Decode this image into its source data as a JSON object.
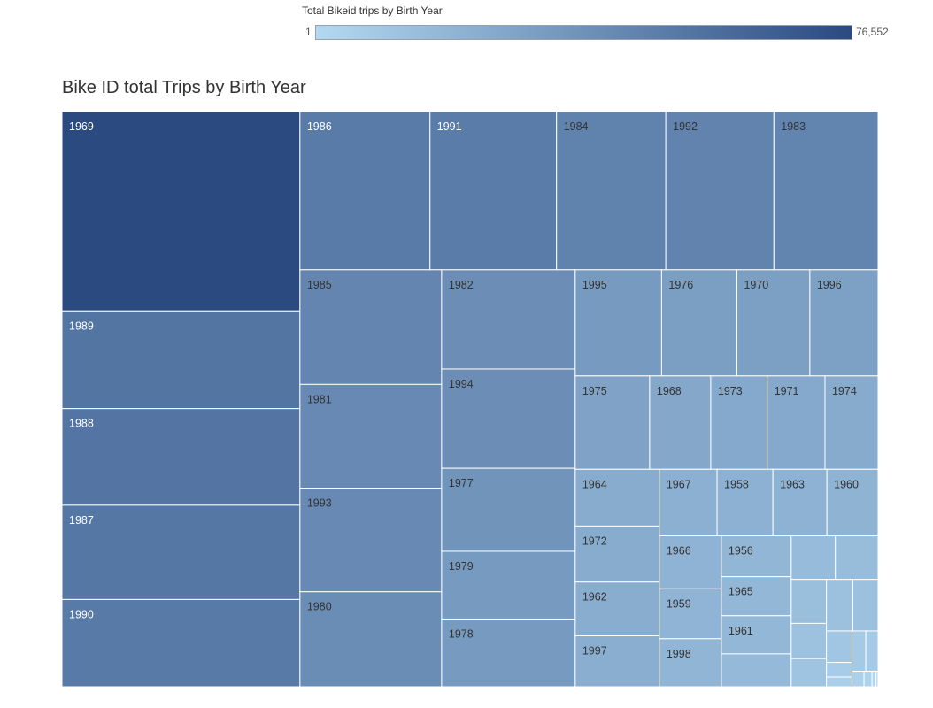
{
  "legend": {
    "title": "Total Bikeid trips by Birth Year",
    "min_label": "1",
    "max_label": "76,552",
    "color_low": "#b3d9f2",
    "color_high": "#2a4a80"
  },
  "chart_data": {
    "type": "treemap",
    "title": "Bike ID total Trips by Birth Year",
    "color_measure": "Total Bikeid trips",
    "color_range": [
      1,
      76552
    ],
    "layout": [
      {
        "len": 276,
        "cells": [
          {
            "label": "1969",
            "value": 76552
          },
          {
            "label": "1989",
            "value": 37500
          },
          {
            "label": "1988",
            "value": 37100
          },
          {
            "label": "1987",
            "value": 36200
          },
          {
            "label": "1990",
            "value": 33500
          }
        ]
      },
      {
        "len": 645,
        "cells": [
          {
            "rowlen": 183,
            "cells": [
              {
                "label": "1986",
                "value": 33200
              },
              {
                "label": "1991",
                "value": 32300
              },
              {
                "label": "1984",
                "value": 27900
              },
              {
                "label": "1992",
                "value": 27600
              },
              {
                "label": "1983",
                "value": 26600
              }
            ]
          },
          {
            "rowlen": 467,
            "cells": [
              {
                "len": 164,
                "cells": [
                  {
                    "label": "1985",
                    "value": 26200
                  },
                  {
                    "label": "1981",
                    "value": 23700
                  },
                  {
                    "label": "1993",
                    "value": 23700
                  },
                  {
                    "label": "1980",
                    "value": 21700
                  }
                ]
              },
              {
                "len": 155,
                "cells": [
                  {
                    "label": "1982",
                    "value": 21400
                  },
                  {
                    "label": "1994",
                    "value": 21400
                  },
                  {
                    "label": "1977",
                    "value": 17900
                  },
                  {
                    "label": "1979",
                    "value": 14600
                  },
                  {
                    "label": "1978",
                    "value": 14600
                  }
                ]
              },
              {
                "len": 326,
                "cells": [
                  {
                    "rowlen": 126,
                    "cells": [
                      {
                        "label": "1995",
                        "value": 14800
                      },
                      {
                        "label": "1976",
                        "value": 12900
                      },
                      {
                        "label": "1970",
                        "value": 12500
                      },
                      {
                        "label": "1996",
                        "value": 11700
                      }
                    ]
                  },
                  {
                    "rowlen": 110,
                    "cells": [
                      {
                        "label": "1975",
                        "value": 11200
                      },
                      {
                        "label": "1968",
                        "value": 9200
                      },
                      {
                        "label": "1973",
                        "value": 8500
                      },
                      {
                        "label": "1971",
                        "value": 8700
                      },
                      {
                        "label": "1974",
                        "value": 8000
                      }
                    ]
                  },
                  {
                    "rowlen": 231,
                    "cells": [
                      {
                        "len": 98,
                        "cells": [
                          {
                            "label": "1964",
                            "value": 7700
                          },
                          {
                            "label": "1972",
                            "value": 7600
                          },
                          {
                            "label": "1962",
                            "value": 7300
                          },
                          {
                            "label": "1997",
                            "value": 6900
                          }
                        ]
                      },
                      {
                        "len": 228,
                        "cells": [
                          {
                            "rowlen": 81,
                            "cells": [
                              {
                                "label": "1967",
                                "value": 6200
                              },
                              {
                                "label": "1958",
                                "value": 6000
                              },
                              {
                                "label": "1963",
                                "value": 5800
                              },
                              {
                                "label": "1960",
                                "value": 5500
                              }
                            ]
                          },
                          {
                            "rowlen": 150,
                            "cells": [
                              {
                                "len": 77,
                                "cells": [
                                  {
                                    "label": "1966",
                                    "value": 5300
                                  },
                                  {
                                    "label": "1959",
                                    "value": 5000
                                  },
                                  {
                                    "label": "1998",
                                    "value": 4800
                                  }
                                ]
                              },
                              {
                                "len": 72,
                                "cells": [
                                  {
                                    "label": "1956",
                                    "value": 4600
                                  },
                                  {
                                    "label": "1965",
                                    "value": 4400
                                  },
                                  {
                                    "label": "1961",
                                    "value": 4300
                                  },
                                  {
                                    "label": "",
                                    "value": 3700
                                  }
                                ]
                              },
                              {
                                "len": 79,
                                "cells": [
                                  {
                                    "rowlen": 47,
                                    "cells": [
                                      {
                                        "label": "",
                                        "value": 3100
                                      },
                                      {
                                        "label": "",
                                        "value": 3000
                                      }
                                    ]
                                  },
                                  {
                                    "rowlen": 103,
                                    "cells": [
                                      {
                                        "len": 29,
                                        "cells": [
                                          {
                                            "label": "",
                                            "value": 2500
                                          },
                                          {
                                            "label": "",
                                            "value": 2000
                                          },
                                          {
                                            "label": "",
                                            "value": 1600
                                          }
                                        ]
                                      },
                                      {
                                        "len": 50,
                                        "cells": [
                                          {
                                            "rowlen": 49,
                                            "cells": [
                                              {
                                                "label": "",
                                                "value": 2200
                                              },
                                              {
                                                "label": "",
                                                "value": 2100
                                              }
                                            ]
                                          },
                                          {
                                            "rowlen": 54,
                                            "cells": [
                                              {
                                                "len": 18,
                                                "cells": [
                                                  {
                                                    "label": "",
                                                    "value": 1300
                                                  },
                                                  {
                                                    "label": "",
                                                    "value": 600
                                                  },
                                                  {
                                                    "label": "",
                                                    "value": 400
                                                  }
                                                ]
                                              },
                                              {
                                                "len": 32,
                                                "cells": [
                                                  {
                                                    "rowlen": 36,
                                                    "cells": [
                                                      {
                                                        "label": "",
                                                        "value": 900
                                                      },
                                                      {
                                                        "label": "",
                                                        "value": 800
                                                      }
                                                    ]
                                                  },
                                                  {
                                                    "rowlen": 18,
                                                    "cells": [
                                                      {
                                                        "label": "",
                                                        "value": 300
                                                      },
                                                      {
                                                        "label": "",
                                                        "value": 200
                                                      },
                                                      {
                                                        "label": "",
                                                        "value": 100
                                                      },
                                                      {
                                                        "label": "",
                                                        "value": 50
                                                      },
                                                      {
                                                        "label": "",
                                                        "value": 1
                                                      }
                                                    ]
                                                  }
                                                ]
                                              }
                                            ]
                                          }
                                        ]
                                      }
                                    ]
                                  }
                                ]
                              }
                            ]
                          }
                        ]
                      }
                    ]
                  }
                ]
              }
            ]
          }
        ]
      }
    ]
  }
}
